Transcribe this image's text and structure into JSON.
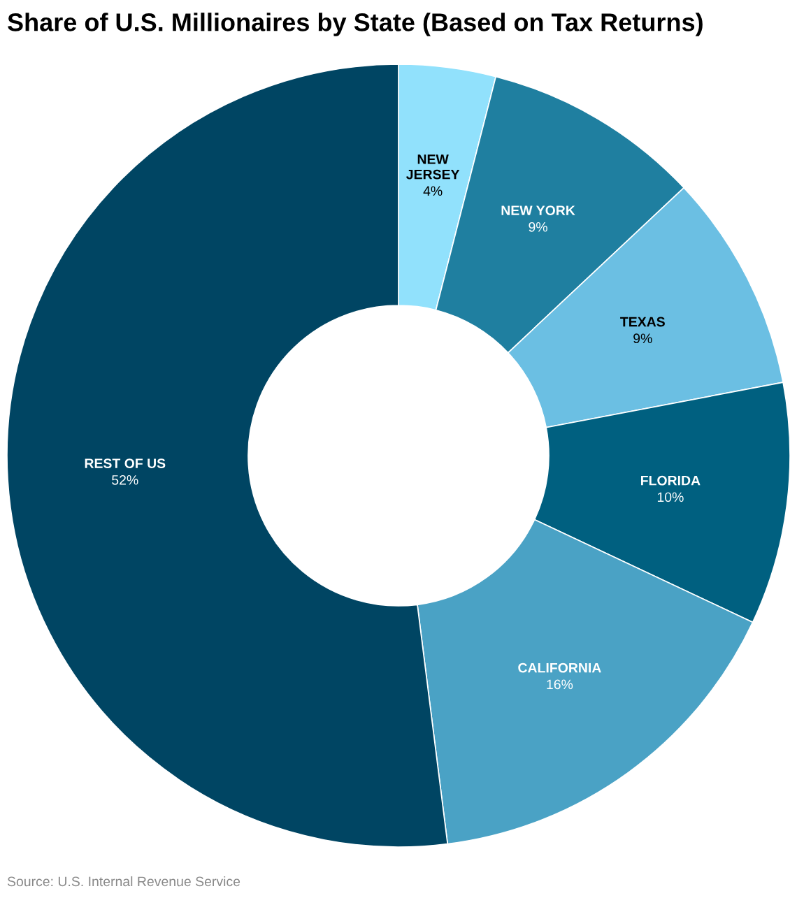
{
  "chart_data": {
    "type": "donut",
    "title": "Share of U.S. Millionaires by State (Based on Tax Returns)",
    "categories": [
      "NEW JERSEY",
      "NEW YORK",
      "TEXAS",
      "FLORIDA",
      "CALIFORNIA",
      "REST OF US"
    ],
    "values": [
      4,
      9,
      9,
      10,
      16,
      52
    ],
    "value_labels": [
      "4%",
      "9%",
      "9%",
      "10%",
      "16%",
      "52%"
    ],
    "colors": [
      "#91e1fc",
      "#1f7fa0",
      "#6bbfe3",
      "#006080",
      "#4aa2c5",
      "#004563"
    ],
    "annotations": [
      "Source: U.S. Internal Revenue Service"
    ]
  }
}
